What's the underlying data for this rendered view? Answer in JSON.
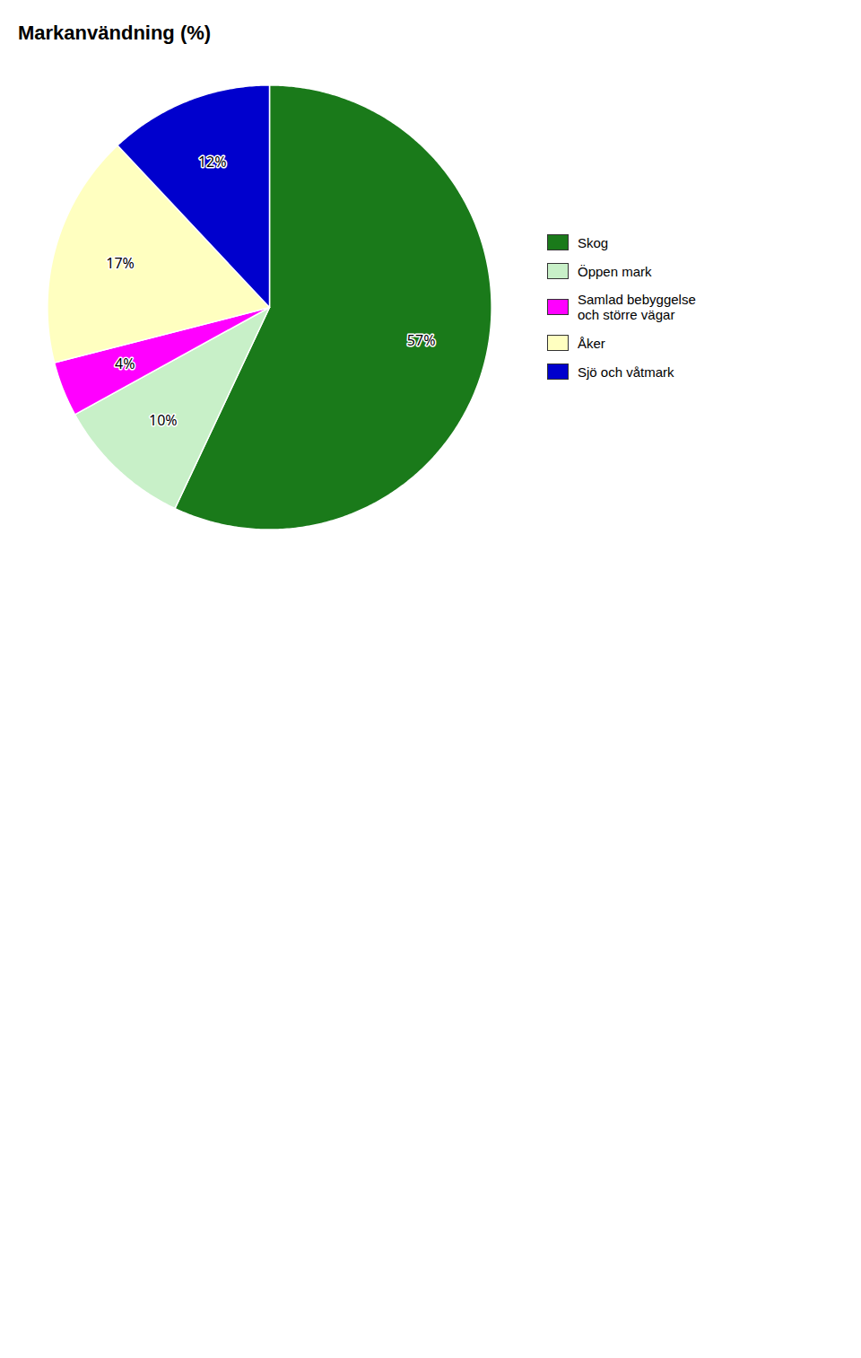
{
  "chart_data": {
    "type": "pie",
    "title": "Markanvändning (%)",
    "categories": [
      "Skog",
      "Öppen mark",
      "Samlad bebyggelse\noch större vägar",
      "Åker",
      "Sjö och våtmark"
    ],
    "values": [
      57,
      10,
      4,
      17,
      12
    ],
    "value_labels": [
      "57%",
      "10%",
      "4%",
      "17%",
      "12%"
    ],
    "colors": [
      "#1a7a1a",
      "#c8f0c8",
      "#ff00ff",
      "#ffffc0",
      "#0000cd"
    ],
    "data_labels": true,
    "legend": "right"
  }
}
